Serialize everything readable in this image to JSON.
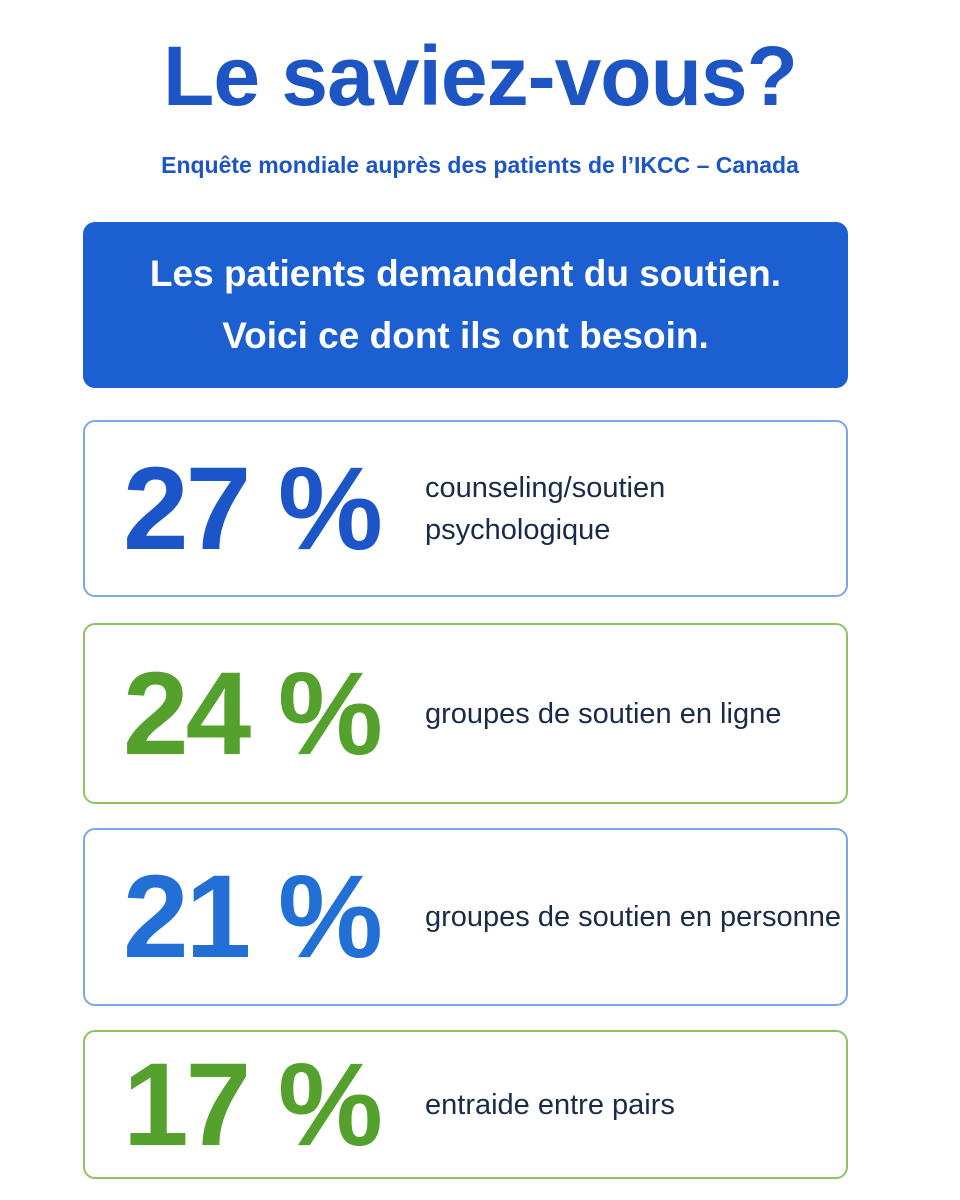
{
  "header": {
    "title": "Le saviez-vous?",
    "subtitle": "Enquête mondiale auprès des patients de l’IKCC – Canada"
  },
  "banner": {
    "lines": [
      "Les patients demandent du soutien.",
      "Voici ce dont ils ont besoin."
    ]
  },
  "items": [
    {
      "value": "27 %",
      "label": [
        "counseling/soutien",
        "psychologique"
      ]
    },
    {
      "value": "24 %",
      "label": [
        "groupes de soutien en ligne"
      ]
    },
    {
      "value": "21 %",
      "label": [
        "groupes de soutien en personne"
      ]
    },
    {
      "value": "17 %",
      "label": [
        "entraide entre pairs"
      ]
    }
  ]
}
